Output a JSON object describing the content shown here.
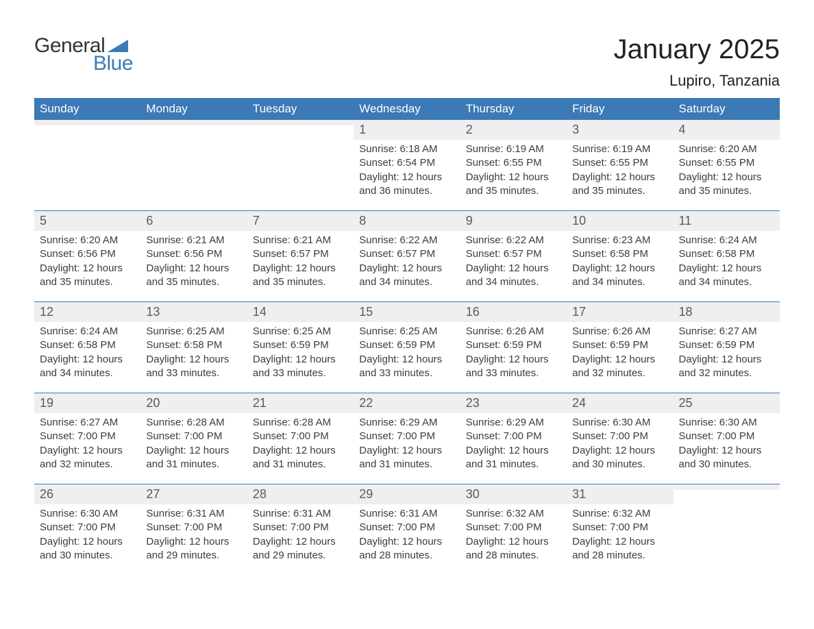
{
  "logo": {
    "general": "General",
    "blue": "Blue"
  },
  "title": "January 2025",
  "location": "Lupiro, Tanzania",
  "colors": {
    "header_bg": "#3b79b7",
    "header_text": "#ffffff",
    "daynum_bg": "#efefef",
    "week_border": "#3b79b7",
    "body_text": "#3c3c3c",
    "page_bg": "#ffffff",
    "logo_blue": "#3b79b7",
    "logo_dark": "#333333"
  },
  "typography": {
    "title_fontsize": 40,
    "location_fontsize": 22,
    "dow_fontsize": 17,
    "daynum_fontsize": 18,
    "body_fontsize": 15
  },
  "dow": [
    "Sunday",
    "Monday",
    "Tuesday",
    "Wednesday",
    "Thursday",
    "Friday",
    "Saturday"
  ],
  "weeks": [
    [
      {
        "n": "",
        "sunrise": "",
        "sunset": "",
        "dl1": "",
        "dl2": ""
      },
      {
        "n": "",
        "sunrise": "",
        "sunset": "",
        "dl1": "",
        "dl2": ""
      },
      {
        "n": "",
        "sunrise": "",
        "sunset": "",
        "dl1": "",
        "dl2": ""
      },
      {
        "n": "1",
        "sunrise": "Sunrise: 6:18 AM",
        "sunset": "Sunset: 6:54 PM",
        "dl1": "Daylight: 12 hours",
        "dl2": "and 36 minutes."
      },
      {
        "n": "2",
        "sunrise": "Sunrise: 6:19 AM",
        "sunset": "Sunset: 6:55 PM",
        "dl1": "Daylight: 12 hours",
        "dl2": "and 35 minutes."
      },
      {
        "n": "3",
        "sunrise": "Sunrise: 6:19 AM",
        "sunset": "Sunset: 6:55 PM",
        "dl1": "Daylight: 12 hours",
        "dl2": "and 35 minutes."
      },
      {
        "n": "4",
        "sunrise": "Sunrise: 6:20 AM",
        "sunset": "Sunset: 6:55 PM",
        "dl1": "Daylight: 12 hours",
        "dl2": "and 35 minutes."
      }
    ],
    [
      {
        "n": "5",
        "sunrise": "Sunrise: 6:20 AM",
        "sunset": "Sunset: 6:56 PM",
        "dl1": "Daylight: 12 hours",
        "dl2": "and 35 minutes."
      },
      {
        "n": "6",
        "sunrise": "Sunrise: 6:21 AM",
        "sunset": "Sunset: 6:56 PM",
        "dl1": "Daylight: 12 hours",
        "dl2": "and 35 minutes."
      },
      {
        "n": "7",
        "sunrise": "Sunrise: 6:21 AM",
        "sunset": "Sunset: 6:57 PM",
        "dl1": "Daylight: 12 hours",
        "dl2": "and 35 minutes."
      },
      {
        "n": "8",
        "sunrise": "Sunrise: 6:22 AM",
        "sunset": "Sunset: 6:57 PM",
        "dl1": "Daylight: 12 hours",
        "dl2": "and 34 minutes."
      },
      {
        "n": "9",
        "sunrise": "Sunrise: 6:22 AM",
        "sunset": "Sunset: 6:57 PM",
        "dl1": "Daylight: 12 hours",
        "dl2": "and 34 minutes."
      },
      {
        "n": "10",
        "sunrise": "Sunrise: 6:23 AM",
        "sunset": "Sunset: 6:58 PM",
        "dl1": "Daylight: 12 hours",
        "dl2": "and 34 minutes."
      },
      {
        "n": "11",
        "sunrise": "Sunrise: 6:24 AM",
        "sunset": "Sunset: 6:58 PM",
        "dl1": "Daylight: 12 hours",
        "dl2": "and 34 minutes."
      }
    ],
    [
      {
        "n": "12",
        "sunrise": "Sunrise: 6:24 AM",
        "sunset": "Sunset: 6:58 PM",
        "dl1": "Daylight: 12 hours",
        "dl2": "and 34 minutes."
      },
      {
        "n": "13",
        "sunrise": "Sunrise: 6:25 AM",
        "sunset": "Sunset: 6:58 PM",
        "dl1": "Daylight: 12 hours",
        "dl2": "and 33 minutes."
      },
      {
        "n": "14",
        "sunrise": "Sunrise: 6:25 AM",
        "sunset": "Sunset: 6:59 PM",
        "dl1": "Daylight: 12 hours",
        "dl2": "and 33 minutes."
      },
      {
        "n": "15",
        "sunrise": "Sunrise: 6:25 AM",
        "sunset": "Sunset: 6:59 PM",
        "dl1": "Daylight: 12 hours",
        "dl2": "and 33 minutes."
      },
      {
        "n": "16",
        "sunrise": "Sunrise: 6:26 AM",
        "sunset": "Sunset: 6:59 PM",
        "dl1": "Daylight: 12 hours",
        "dl2": "and 33 minutes."
      },
      {
        "n": "17",
        "sunrise": "Sunrise: 6:26 AM",
        "sunset": "Sunset: 6:59 PM",
        "dl1": "Daylight: 12 hours",
        "dl2": "and 32 minutes."
      },
      {
        "n": "18",
        "sunrise": "Sunrise: 6:27 AM",
        "sunset": "Sunset: 6:59 PM",
        "dl1": "Daylight: 12 hours",
        "dl2": "and 32 minutes."
      }
    ],
    [
      {
        "n": "19",
        "sunrise": "Sunrise: 6:27 AM",
        "sunset": "Sunset: 7:00 PM",
        "dl1": "Daylight: 12 hours",
        "dl2": "and 32 minutes."
      },
      {
        "n": "20",
        "sunrise": "Sunrise: 6:28 AM",
        "sunset": "Sunset: 7:00 PM",
        "dl1": "Daylight: 12 hours",
        "dl2": "and 31 minutes."
      },
      {
        "n": "21",
        "sunrise": "Sunrise: 6:28 AM",
        "sunset": "Sunset: 7:00 PM",
        "dl1": "Daylight: 12 hours",
        "dl2": "and 31 minutes."
      },
      {
        "n": "22",
        "sunrise": "Sunrise: 6:29 AM",
        "sunset": "Sunset: 7:00 PM",
        "dl1": "Daylight: 12 hours",
        "dl2": "and 31 minutes."
      },
      {
        "n": "23",
        "sunrise": "Sunrise: 6:29 AM",
        "sunset": "Sunset: 7:00 PM",
        "dl1": "Daylight: 12 hours",
        "dl2": "and 31 minutes."
      },
      {
        "n": "24",
        "sunrise": "Sunrise: 6:30 AM",
        "sunset": "Sunset: 7:00 PM",
        "dl1": "Daylight: 12 hours",
        "dl2": "and 30 minutes."
      },
      {
        "n": "25",
        "sunrise": "Sunrise: 6:30 AM",
        "sunset": "Sunset: 7:00 PM",
        "dl1": "Daylight: 12 hours",
        "dl2": "and 30 minutes."
      }
    ],
    [
      {
        "n": "26",
        "sunrise": "Sunrise: 6:30 AM",
        "sunset": "Sunset: 7:00 PM",
        "dl1": "Daylight: 12 hours",
        "dl2": "and 30 minutes."
      },
      {
        "n": "27",
        "sunrise": "Sunrise: 6:31 AM",
        "sunset": "Sunset: 7:00 PM",
        "dl1": "Daylight: 12 hours",
        "dl2": "and 29 minutes."
      },
      {
        "n": "28",
        "sunrise": "Sunrise: 6:31 AM",
        "sunset": "Sunset: 7:00 PM",
        "dl1": "Daylight: 12 hours",
        "dl2": "and 29 minutes."
      },
      {
        "n": "29",
        "sunrise": "Sunrise: 6:31 AM",
        "sunset": "Sunset: 7:00 PM",
        "dl1": "Daylight: 12 hours",
        "dl2": "and 28 minutes."
      },
      {
        "n": "30",
        "sunrise": "Sunrise: 6:32 AM",
        "sunset": "Sunset: 7:00 PM",
        "dl1": "Daylight: 12 hours",
        "dl2": "and 28 minutes."
      },
      {
        "n": "31",
        "sunrise": "Sunrise: 6:32 AM",
        "sunset": "Sunset: 7:00 PM",
        "dl1": "Daylight: 12 hours",
        "dl2": "and 28 minutes."
      },
      {
        "n": "",
        "sunrise": "",
        "sunset": "",
        "dl1": "",
        "dl2": ""
      }
    ]
  ]
}
